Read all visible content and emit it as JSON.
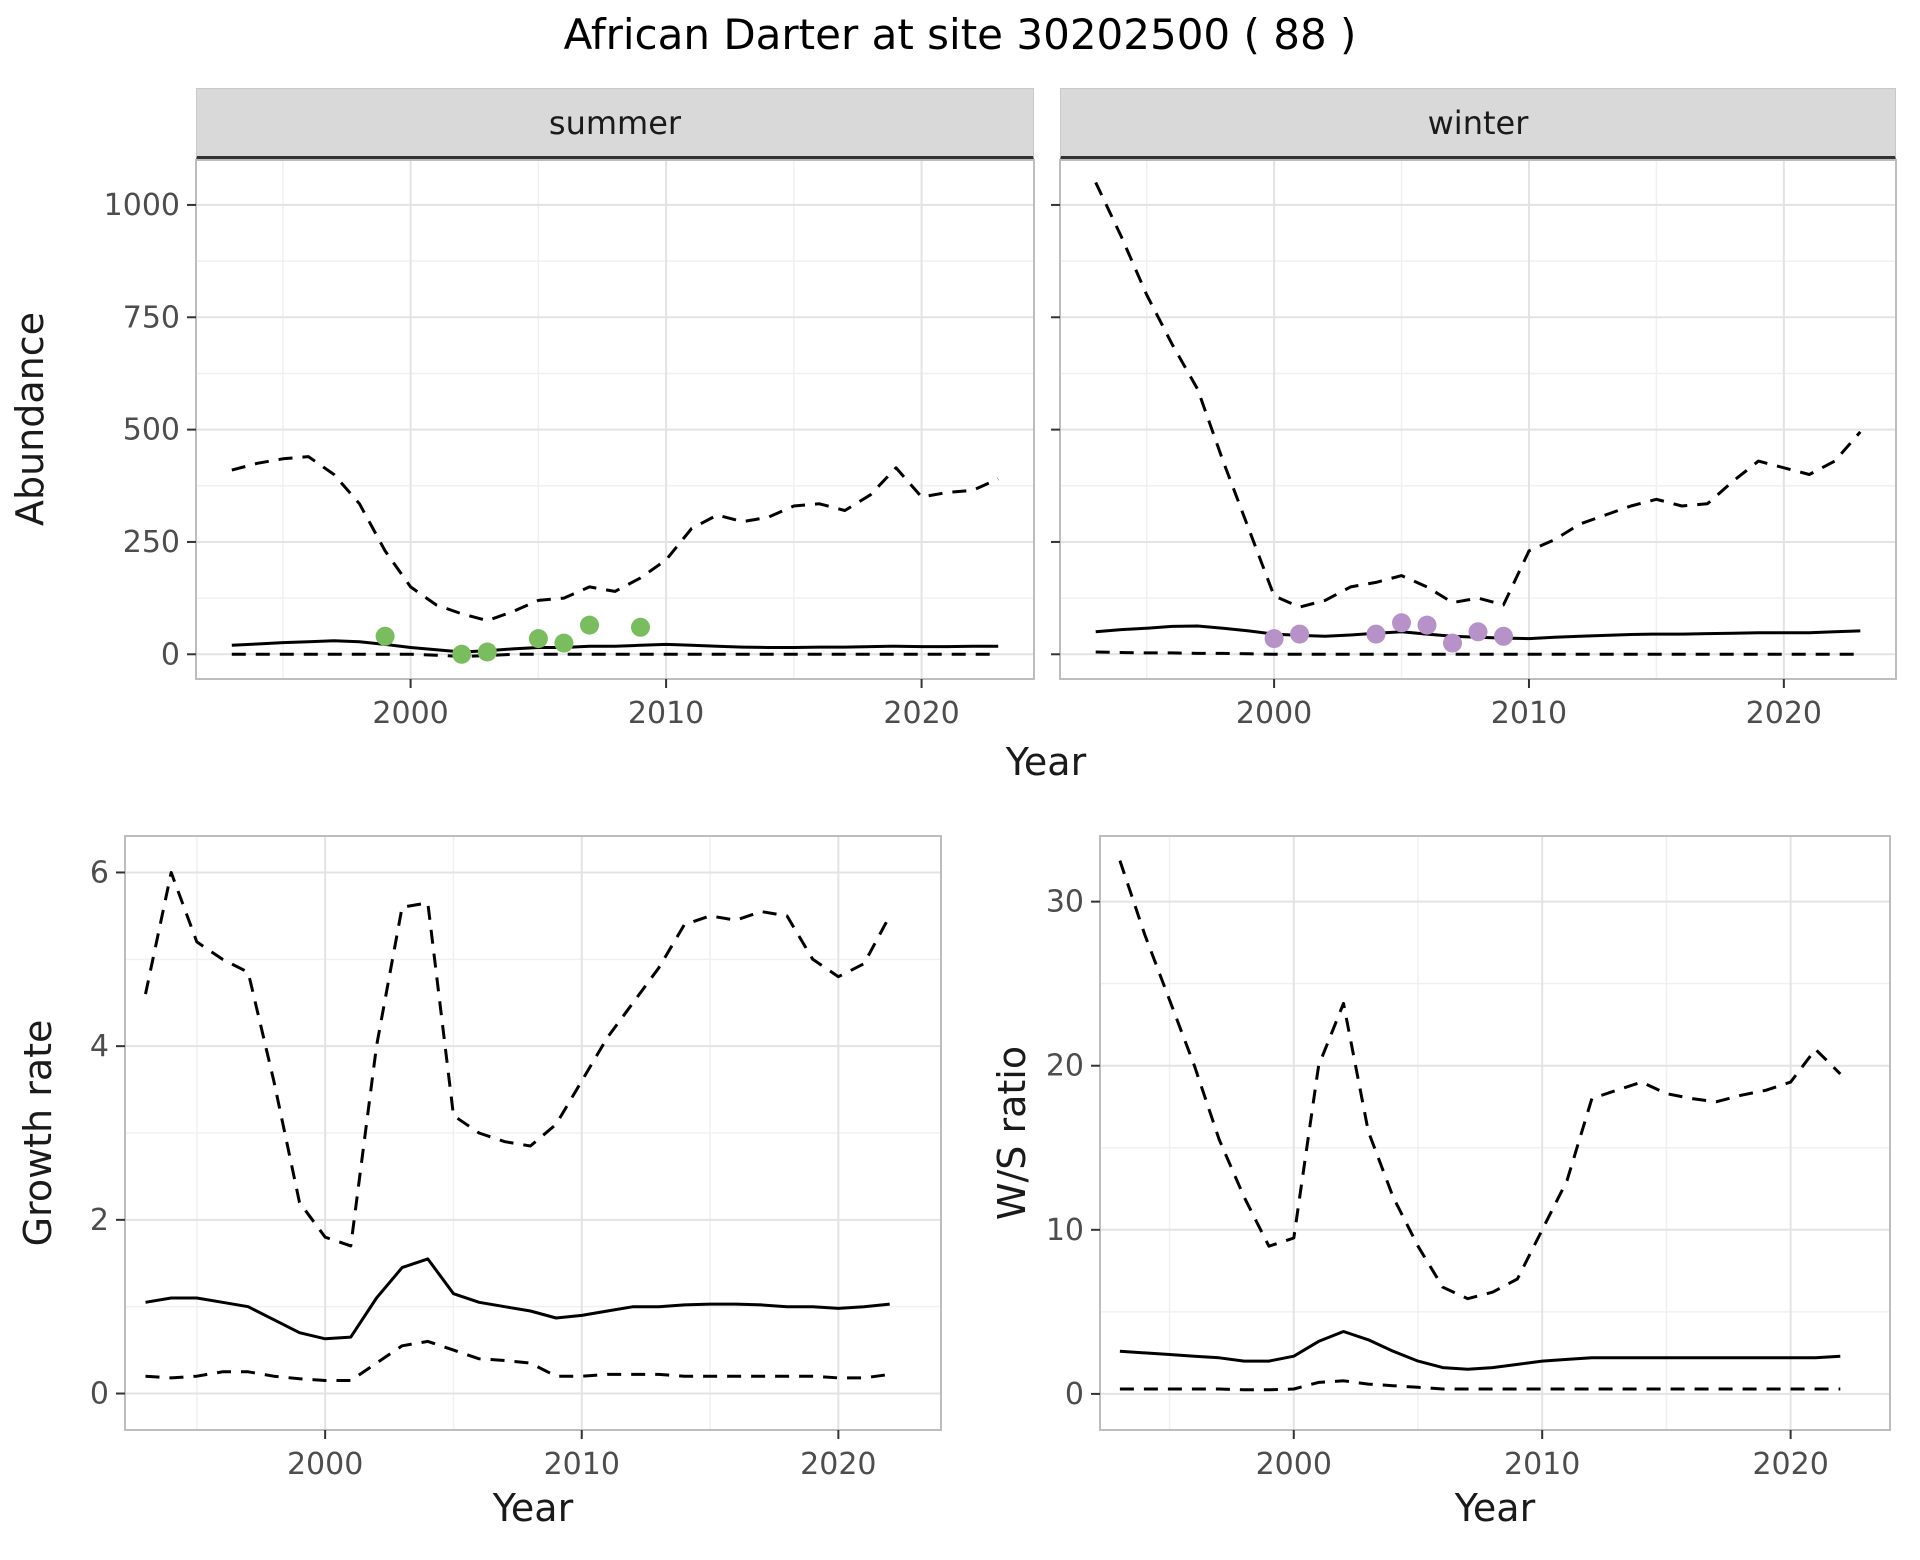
{
  "title": "African Darter at site 30202500 ( 88 )",
  "colors": {
    "summer_points": "#7abd5e",
    "winter_points": "#b792c8",
    "line": "#000000",
    "strip_bg": "#d9d9d9",
    "grid_major": "#e3e3e3",
    "grid_minor": "#f0f0f0",
    "panel_border": "#bdbdbd",
    "tick_mark": "#333333",
    "tick_label": "#4d4d4d"
  },
  "top_figure": {
    "ylabel": "Abundance",
    "xlabel": "Year",
    "facets": [
      {
        "label": "summer"
      },
      {
        "label": "winter"
      }
    ]
  },
  "chart_data": [
    {
      "id": "abundance-summer",
      "type": "line",
      "facet": "summer",
      "xlabel": "Year",
      "ylabel": "Abundance",
      "xlim": [
        1991.6,
        2024.4
      ],
      "ylim": [
        -55,
        1100
      ],
      "xticks": [
        2000,
        2010,
        2020
      ],
      "yticks": [
        0,
        250,
        500,
        750,
        1000
      ],
      "grid": true,
      "legend": "none",
      "x": [
        1993,
        1994,
        1995,
        1996,
        1997,
        1998,
        1999,
        2000,
        2001,
        2002,
        2003,
        2004,
        2005,
        2006,
        2007,
        2008,
        2009,
        2010,
        2011,
        2012,
        2013,
        2014,
        2015,
        2016,
        2017,
        2018,
        2019,
        2020,
        2021,
        2022,
        2023
      ],
      "series": [
        {
          "name": "upper-95ci",
          "style": "dashed",
          "color": "#000000",
          "values": [
            410,
            425,
            435,
            440,
            400,
            335,
            230,
            150,
            110,
            90,
            75,
            95,
            120,
            125,
            150,
            140,
            170,
            210,
            280,
            310,
            295,
            305,
            330,
            335,
            320,
            355,
            415,
            350,
            360,
            365,
            390
          ]
        },
        {
          "name": "median",
          "style": "solid",
          "color": "#000000",
          "values": [
            20,
            23,
            26,
            28,
            30,
            28,
            22,
            15,
            10,
            5,
            8,
            12,
            15,
            15,
            18,
            18,
            20,
            22,
            20,
            18,
            16,
            15,
            15,
            16,
            16,
            17,
            18,
            17,
            17,
            18,
            18
          ]
        },
        {
          "name": "lower-95ci",
          "style": "dashed",
          "color": "#000000",
          "values": [
            0,
            0,
            0,
            0,
            0,
            0,
            0,
            0,
            -2,
            -5,
            -3,
            0,
            0,
            0,
            0,
            0,
            0,
            0,
            0,
            0,
            0,
            0,
            0,
            0,
            0,
            0,
            0,
            0,
            0,
            0,
            0
          ]
        }
      ],
      "points": {
        "name": "observed-counts",
        "color": "#7abd5e",
        "x": [
          1999,
          2002,
          2003,
          2005,
          2006,
          2007,
          2009
        ],
        "y": [
          40,
          0,
          5,
          35,
          25,
          65,
          60
        ]
      }
    },
    {
      "id": "abundance-winter",
      "type": "line",
      "facet": "winter",
      "xlabel": "Year",
      "ylabel": "Abundance",
      "xlim": [
        1991.6,
        2024.4
      ],
      "ylim": [
        -55,
        1100
      ],
      "xticks": [
        2000,
        2010,
        2020
      ],
      "yticks": [
        0,
        250,
        500,
        750,
        1000
      ],
      "grid": true,
      "legend": "none",
      "x": [
        1993,
        1994,
        1995,
        1996,
        1997,
        1998,
        1999,
        2000,
        2001,
        2002,
        2003,
        2004,
        2005,
        2006,
        2007,
        2008,
        2009,
        2010,
        2011,
        2012,
        2013,
        2014,
        2015,
        2016,
        2017,
        2018,
        2019,
        2020,
        2021,
        2022,
        2023
      ],
      "series": [
        {
          "name": "upper-95ci",
          "style": "dashed",
          "color": "#000000",
          "values": [
            1050,
            930,
            800,
            690,
            590,
            430,
            280,
            130,
            105,
            120,
            150,
            160,
            175,
            150,
            115,
            125,
            110,
            230,
            255,
            290,
            310,
            330,
            345,
            330,
            335,
            385,
            430,
            415,
            400,
            430,
            495
          ]
        },
        {
          "name": "median",
          "style": "solid",
          "color": "#000000",
          "values": [
            50,
            55,
            58,
            62,
            63,
            58,
            52,
            45,
            42,
            40,
            43,
            47,
            50,
            45,
            40,
            38,
            36,
            35,
            38,
            40,
            42,
            44,
            45,
            45,
            46,
            47,
            48,
            48,
            48,
            50,
            52
          ]
        },
        {
          "name": "lower-95ci",
          "style": "dashed",
          "color": "#000000",
          "values": [
            5,
            4,
            3,
            3,
            2,
            2,
            1,
            0,
            0,
            0,
            0,
            0,
            0,
            0,
            0,
            0,
            0,
            0,
            0,
            0,
            0,
            0,
            0,
            0,
            0,
            0,
            0,
            0,
            0,
            0,
            0
          ]
        }
      ],
      "points": {
        "name": "observed-counts",
        "color": "#b792c8",
        "x": [
          2000,
          2001,
          2004,
          2005,
          2006,
          2007,
          2008,
          2009
        ],
        "y": [
          35,
          45,
          45,
          70,
          65,
          25,
          50,
          40
        ]
      }
    },
    {
      "id": "growth-rate",
      "type": "line",
      "xlabel": "Year",
      "ylabel": "Growth rate",
      "xlim": [
        1992.2,
        2024.0
      ],
      "ylim": [
        -0.42,
        6.42
      ],
      "xticks": [
        2000,
        2010,
        2020
      ],
      "yticks": [
        0,
        2,
        4,
        6
      ],
      "grid": true,
      "legend": "none",
      "x": [
        1993,
        1994,
        1995,
        1996,
        1997,
        1998,
        1999,
        2000,
        2001,
        2002,
        2003,
        2004,
        2005,
        2006,
        2007,
        2008,
        2009,
        2010,
        2011,
        2012,
        2013,
        2014,
        2015,
        2016,
        2017,
        2018,
        2019,
        2020,
        2021,
        2022
      ],
      "series": [
        {
          "name": "upper-95ci",
          "style": "dashed",
          "color": "#000000",
          "values": [
            4.6,
            6.0,
            5.2,
            5.0,
            4.85,
            3.6,
            2.2,
            1.8,
            1.7,
            4.0,
            5.6,
            5.65,
            3.2,
            3.0,
            2.9,
            2.85,
            3.1,
            3.6,
            4.1,
            4.5,
            4.9,
            5.4,
            5.5,
            5.45,
            5.55,
            5.5,
            5.0,
            4.8,
            4.95,
            5.5
          ]
        },
        {
          "name": "median",
          "style": "solid",
          "color": "#000000",
          "values": [
            1.05,
            1.1,
            1.1,
            1.05,
            1.0,
            0.85,
            0.7,
            0.63,
            0.65,
            1.1,
            1.45,
            1.55,
            1.15,
            1.05,
            1.0,
            0.95,
            0.87,
            0.9,
            0.95,
            1.0,
            1.0,
            1.02,
            1.03,
            1.03,
            1.02,
            1.0,
            1.0,
            0.98,
            1.0,
            1.03
          ]
        },
        {
          "name": "lower-95ci",
          "style": "dashed",
          "color": "#000000",
          "values": [
            0.2,
            0.18,
            0.2,
            0.25,
            0.25,
            0.2,
            0.17,
            0.15,
            0.15,
            0.35,
            0.55,
            0.6,
            0.5,
            0.4,
            0.38,
            0.35,
            0.2,
            0.2,
            0.22,
            0.22,
            0.22,
            0.2,
            0.2,
            0.2,
            0.2,
            0.2,
            0.2,
            0.18,
            0.18,
            0.22
          ]
        }
      ]
    },
    {
      "id": "ws-ratio",
      "type": "line",
      "xlabel": "Year",
      "ylabel": "W/S ratio",
      "xlim": [
        1992.2,
        2024.0
      ],
      "ylim": [
        -2.2,
        34
      ],
      "xticks": [
        2000,
        2010,
        2020
      ],
      "yticks": [
        0,
        10,
        20,
        30
      ],
      "grid": true,
      "legend": "none",
      "x": [
        1993,
        1994,
        1995,
        1996,
        1997,
        1998,
        1999,
        2000,
        2001,
        2002,
        2003,
        2004,
        2005,
        2006,
        2007,
        2008,
        2009,
        2010,
        2011,
        2012,
        2013,
        2014,
        2015,
        2016,
        2017,
        2018,
        2019,
        2020,
        2021,
        2022
      ],
      "series": [
        {
          "name": "upper-95ci",
          "style": "dashed",
          "color": "#000000",
          "values": [
            32.5,
            28,
            24,
            20,
            15.5,
            12,
            9,
            9.5,
            20,
            23.8,
            16,
            12,
            9,
            6.5,
            5.8,
            6.2,
            7,
            10,
            13,
            18,
            18.5,
            19,
            18.3,
            18,
            17.8,
            18.2,
            18.5,
            19,
            21,
            19.5
          ]
        },
        {
          "name": "median",
          "style": "solid",
          "color": "#000000",
          "values": [
            2.6,
            2.5,
            2.4,
            2.3,
            2.2,
            2.0,
            2.0,
            2.3,
            3.2,
            3.8,
            3.3,
            2.6,
            2.0,
            1.6,
            1.5,
            1.6,
            1.8,
            2.0,
            2.1,
            2.2,
            2.2,
            2.2,
            2.2,
            2.2,
            2.2,
            2.2,
            2.2,
            2.2,
            2.2,
            2.3
          ]
        },
        {
          "name": "lower-95ci",
          "style": "dashed",
          "color": "#000000",
          "values": [
            0.3,
            0.3,
            0.3,
            0.3,
            0.3,
            0.25,
            0.25,
            0.3,
            0.7,
            0.8,
            0.6,
            0.5,
            0.4,
            0.3,
            0.3,
            0.3,
            0.3,
            0.3,
            0.3,
            0.3,
            0.3,
            0.3,
            0.3,
            0.3,
            0.3,
            0.3,
            0.3,
            0.3,
            0.3,
            0.3
          ]
        }
      ]
    }
  ]
}
